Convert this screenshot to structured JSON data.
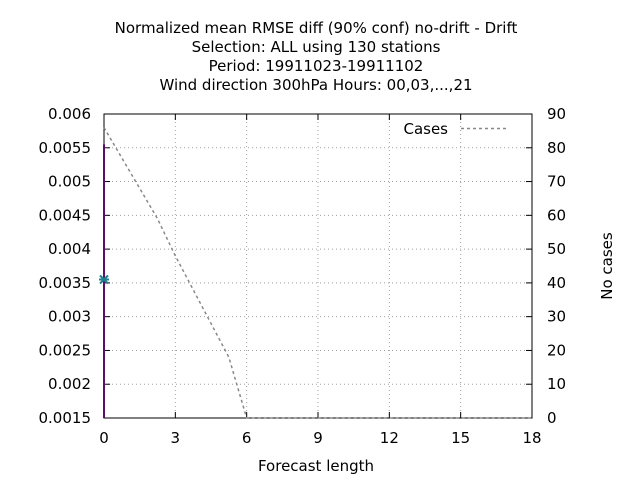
{
  "chart_data": {
    "type": "line",
    "title_lines": [
      "Normalized mean RMSE diff (90% conf) no-drift - Drift",
      "Selection: ALL using   130 stations",
      "Period: 19911023-19911102",
      "Wind direction 300hPa   Hours:  00,03,...,21"
    ],
    "xlabel": "Forecast length",
    "ylabel": "",
    "y2label": "No cases",
    "xlim": [
      0,
      18
    ],
    "ylim": [
      0.0015,
      0.006
    ],
    "y2lim": [
      0,
      90
    ],
    "xticks": [
      "0",
      "3",
      "6",
      "9",
      "12",
      "15",
      "18"
    ],
    "yticks": [
      "0.0015",
      "0.002",
      "0.0025",
      "0.003",
      "0.0035",
      "0.004",
      "0.0045",
      "0.005",
      "0.0055",
      "0.006"
    ],
    "y2ticks": [
      "0",
      "10",
      "20",
      "30",
      "40",
      "50",
      "60",
      "70",
      "80",
      "90"
    ],
    "grid": true,
    "legend_position": "top-right",
    "series": [
      {
        "name": "Cases",
        "axis": "y2",
        "style": "dashed",
        "color": "#888888",
        "x": [
          0,
          0.75,
          1.5,
          2.25,
          3,
          3.75,
          4.5,
          5.25,
          6,
          9,
          12,
          15,
          18
        ],
        "values": [
          86,
          77,
          68,
          59,
          48,
          38,
          28,
          18,
          0,
          0,
          0,
          0,
          0
        ]
      },
      {
        "name": "",
        "axis": "y",
        "style": "errorbar",
        "color": "#5b0f6b",
        "marker_color": "#1f7f8f",
        "x": [
          0
        ],
        "values": [
          0.00355
        ],
        "low": [
          0.0015
        ],
        "high": [
          0.00555
        ]
      }
    ]
  }
}
